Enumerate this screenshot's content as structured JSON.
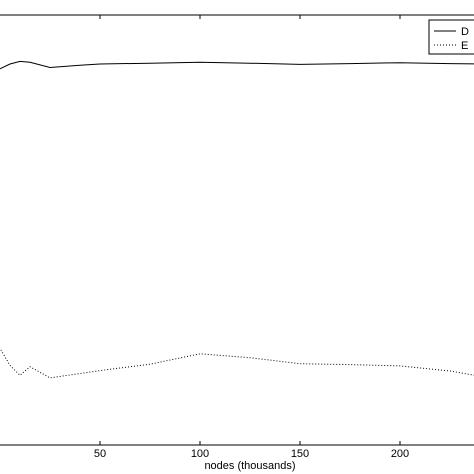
{
  "chart_data": {
    "type": "line",
    "title": "",
    "xlabel": "nodes (thousands)",
    "ylabel": "",
    "xlim": [
      -5,
      240
    ],
    "ylim": [
      0,
      100
    ],
    "grid": false,
    "legend_placement": "top-right",
    "x_ticks": [
      50,
      100,
      150,
      200
    ],
    "x_tick_labels": [
      "50",
      "100",
      "150",
      "200"
    ],
    "series": [
      {
        "name": "D",
        "style": "solid",
        "x": [
          -5,
          0,
          5,
          10,
          15,
          25,
          40,
          50,
          75,
          100,
          125,
          150,
          175,
          200,
          225,
          240
        ],
        "y": [
          87,
          87.5,
          88.6,
          89.2,
          89.0,
          87.8,
          88.3,
          88.6,
          88.8,
          89.0,
          88.8,
          88.5,
          88.7,
          88.9,
          88.7,
          88.6
        ]
      },
      {
        "name": "E",
        "style": "dotted",
        "x": [
          -5,
          0,
          5,
          10,
          15,
          25,
          50,
          75,
          100,
          125,
          150,
          175,
          200,
          225,
          240
        ],
        "y": [
          23,
          22.5,
          18.5,
          16.2,
          18.2,
          15.6,
          17.3,
          18.8,
          21.2,
          20.3,
          18.9,
          18.7,
          18.4,
          17.2,
          16.0
        ]
      }
    ]
  }
}
